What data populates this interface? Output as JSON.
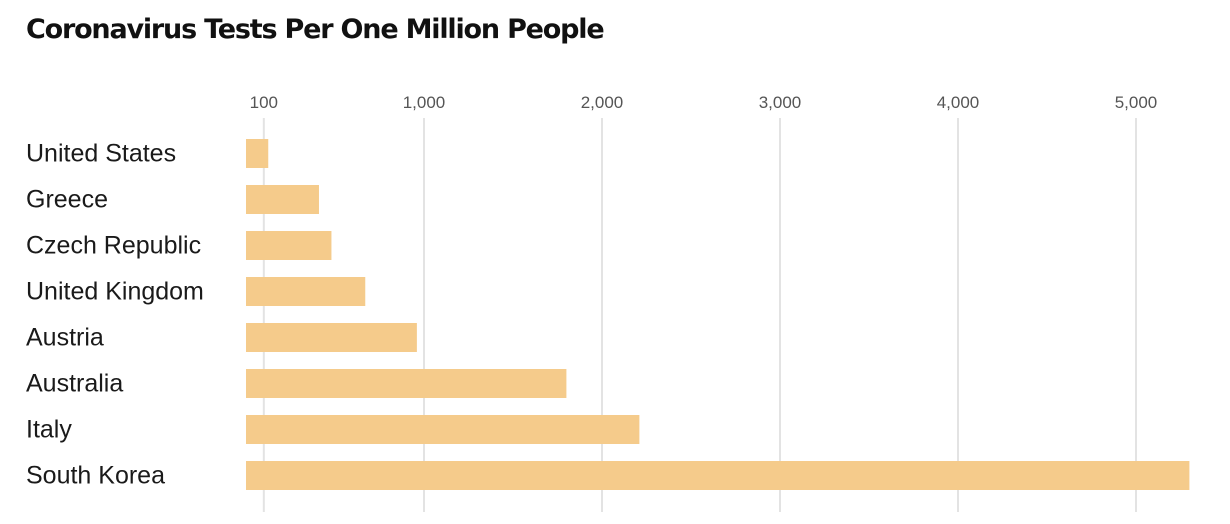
{
  "chart_data": {
    "type": "bar",
    "orientation": "horizontal",
    "title": "Coronavirus Tests Per One Million People",
    "xlabel": "",
    "ylabel": "",
    "xlim": [
      0,
      5300
    ],
    "grid": true,
    "categories": [
      "United States",
      "Greece",
      "Czech Republic",
      "United Kingdom",
      "Austria",
      "Australia",
      "Italy",
      "South Korea"
    ],
    "values": [
      125,
      410,
      480,
      670,
      960,
      1800,
      2210,
      5300
    ],
    "ticks": [
      {
        "value": 100,
        "label": "100"
      },
      {
        "value": 1000,
        "label": "1,000"
      },
      {
        "value": 2000,
        "label": "2,000"
      },
      {
        "value": 3000,
        "label": "3,000"
      },
      {
        "value": 4000,
        "label": "4,000"
      },
      {
        "value": 5000,
        "label": "5,000"
      }
    ],
    "bar_color": "#f5cb8b",
    "grid_color": "#e3e3e3"
  }
}
